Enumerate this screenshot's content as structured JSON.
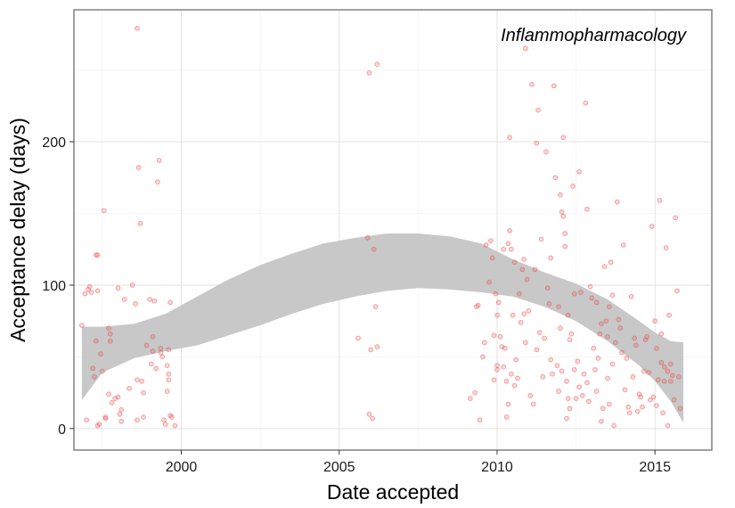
{
  "chart_data": {
    "type": "scatter",
    "title": "Inflammopharmacology",
    "xlabel": "Date accepted",
    "ylabel": "Acceptance delay (days)",
    "xlim": [
      1996.6,
      2016.8
    ],
    "ylim": [
      -15,
      292
    ],
    "xticks": [
      2000,
      2005,
      2010,
      2015
    ],
    "yticks": [
      0,
      100,
      200
    ],
    "grid": true,
    "point_color": "#e8474a",
    "ribbon_color": "#c8c8c8",
    "points": [
      [
        1996.85,
        72
      ],
      [
        1996.95,
        94
      ],
      [
        1997.05,
        97
      ],
      [
        1997.1,
        99
      ],
      [
        1997.15,
        95
      ],
      [
        1997.0,
        6
      ],
      [
        1997.2,
        42
      ],
      [
        1997.25,
        36
      ],
      [
        1997.3,
        121
      ],
      [
        1997.35,
        121
      ],
      [
        1997.3,
        61
      ],
      [
        1997.35,
        96
      ],
      [
        1997.35,
        2
      ],
      [
        1997.4,
        3
      ],
      [
        1997.45,
        52
      ],
      [
        1997.5,
        40
      ],
      [
        1997.55,
        152
      ],
      [
        1997.6,
        7
      ],
      [
        1997.6,
        8
      ],
      [
        1997.7,
        24
      ],
      [
        1997.75,
        66
      ],
      [
        1997.7,
        70
      ],
      [
        1997.75,
        61
      ],
      [
        1997.8,
        18
      ],
      [
        1997.9,
        21
      ],
      [
        1998.0,
        22
      ],
      [
        1998.0,
        98
      ],
      [
        1998.05,
        10
      ],
      [
        1998.1,
        13
      ],
      [
        1998.1,
        5
      ],
      [
        1998.2,
        90
      ],
      [
        1998.35,
        28
      ],
      [
        1998.45,
        100
      ],
      [
        1998.55,
        87
      ],
      [
        1998.6,
        6
      ],
      [
        1998.6,
        34
      ],
      [
        1998.65,
        182
      ],
      [
        1998.6,
        279
      ],
      [
        1998.7,
        143
      ],
      [
        1998.75,
        33
      ],
      [
        1998.8,
        25
      ],
      [
        1998.8,
        8
      ],
      [
        1998.9,
        58
      ],
      [
        1999.0,
        90
      ],
      [
        1999.05,
        45
      ],
      [
        1999.1,
        64
      ],
      [
        1999.1,
        54
      ],
      [
        1999.15,
        89
      ],
      [
        1999.2,
        42
      ],
      [
        1999.25,
        172
      ],
      [
        1999.3,
        187
      ],
      [
        1999.35,
        56
      ],
      [
        1999.35,
        53
      ],
      [
        1999.4,
        50
      ],
      [
        1999.45,
        6
      ],
      [
        1999.5,
        3
      ],
      [
        1999.55,
        26
      ],
      [
        1999.55,
        44
      ],
      [
        1999.6,
        34
      ],
      [
        1999.6,
        38
      ],
      [
        1999.6,
        55
      ],
      [
        1999.65,
        88
      ],
      [
        1999.65,
        9
      ],
      [
        1999.7,
        8
      ],
      [
        1999.8,
        2
      ],
      [
        2005.6,
        63
      ],
      [
        2005.9,
        133
      ],
      [
        2005.95,
        248
      ],
      [
        2005.95,
        10
      ],
      [
        2006.0,
        55
      ],
      [
        2006.05,
        7
      ],
      [
        2006.1,
        125
      ],
      [
        2006.15,
        85
      ],
      [
        2006.2,
        254
      ],
      [
        2006.2,
        57
      ],
      [
        2009.15,
        21
      ],
      [
        2009.3,
        25
      ],
      [
        2009.35,
        85
      ],
      [
        2009.4,
        86
      ],
      [
        2009.45,
        6
      ],
      [
        2009.55,
        50
      ],
      [
        2009.6,
        60
      ],
      [
        2009.65,
        128
      ],
      [
        2009.75,
        102
      ],
      [
        2009.8,
        131
      ],
      [
        2009.85,
        119
      ],
      [
        2009.9,
        65
      ],
      [
        2009.9,
        34
      ],
      [
        2009.95,
        94
      ],
      [
        2010.0,
        79
      ],
      [
        2010.0,
        41
      ],
      [
        2010.0,
        44
      ],
      [
        2010.05,
        88
      ],
      [
        2010.1,
        64
      ],
      [
        2010.15,
        57
      ],
      [
        2010.2,
        43
      ],
      [
        2010.2,
        125
      ],
      [
        2010.25,
        56
      ],
      [
        2010.3,
        8
      ],
      [
        2010.3,
        33
      ],
      [
        2010.35,
        17
      ],
      [
        2010.35,
        129
      ],
      [
        2010.4,
        203
      ],
      [
        2010.4,
        138
      ],
      [
        2010.45,
        125
      ],
      [
        2010.45,
        38
      ],
      [
        2010.5,
        79
      ],
      [
        2010.55,
        116
      ],
      [
        2010.55,
        30
      ],
      [
        2010.6,
        48
      ],
      [
        2010.65,
        35
      ],
      [
        2010.7,
        94
      ],
      [
        2010.75,
        74
      ],
      [
        2010.8,
        111
      ],
      [
        2010.85,
        80
      ],
      [
        2010.85,
        118
      ],
      [
        2010.9,
        265
      ],
      [
        2010.9,
        60
      ],
      [
        2010.95,
        104
      ],
      [
        2011.0,
        82
      ],
      [
        2011.05,
        23
      ],
      [
        2011.1,
        240
      ],
      [
        2011.15,
        17
      ],
      [
        2011.2,
        111
      ],
      [
        2011.25,
        55
      ],
      [
        2011.25,
        199
      ],
      [
        2011.3,
        222
      ],
      [
        2011.35,
        67
      ],
      [
        2011.4,
        132
      ],
      [
        2011.45,
        36
      ],
      [
        2011.5,
        63
      ],
      [
        2011.55,
        193
      ],
      [
        2011.6,
        98
      ],
      [
        2011.65,
        87
      ],
      [
        2011.7,
        119
      ],
      [
        2011.7,
        48
      ],
      [
        2011.75,
        38
      ],
      [
        2011.8,
        239
      ],
      [
        2011.85,
        175
      ],
      [
        2011.9,
        44
      ],
      [
        2011.95,
        26
      ],
      [
        2011.95,
        85
      ],
      [
        2012.0,
        70
      ],
      [
        2012.0,
        163
      ],
      [
        2012.05,
        151
      ],
      [
        2012.05,
        40
      ],
      [
        2012.1,
        203
      ],
      [
        2012.1,
        148
      ],
      [
        2012.15,
        127
      ],
      [
        2012.15,
        136
      ],
      [
        2012.2,
        33
      ],
      [
        2012.2,
        7
      ],
      [
        2012.25,
        79
      ],
      [
        2012.25,
        21
      ],
      [
        2012.3,
        62
      ],
      [
        2012.3,
        14
      ],
      [
        2012.35,
        66
      ],
      [
        2012.4,
        169
      ],
      [
        2012.45,
        41
      ],
      [
        2012.45,
        94
      ],
      [
        2012.5,
        21
      ],
      [
        2012.55,
        47
      ],
      [
        2012.6,
        179
      ],
      [
        2012.6,
        29
      ],
      [
        2012.65,
        95
      ],
      [
        2012.7,
        23
      ],
      [
        2012.75,
        38
      ],
      [
        2012.8,
        227
      ],
      [
        2012.85,
        32
      ],
      [
        2012.85,
        153
      ],
      [
        2012.9,
        19
      ],
      [
        2012.95,
        99
      ],
      [
        2013.0,
        91
      ],
      [
        2013.05,
        56
      ],
      [
        2013.1,
        41
      ],
      [
        2013.15,
        88
      ],
      [
        2013.15,
        26
      ],
      [
        2013.2,
        49
      ],
      [
        2013.25,
        66
      ],
      [
        2013.3,
        5
      ],
      [
        2013.3,
        73
      ],
      [
        2013.35,
        14
      ],
      [
        2013.4,
        113
      ],
      [
        2013.45,
        75
      ],
      [
        2013.5,
        35
      ],
      [
        2013.5,
        64
      ],
      [
        2013.55,
        85
      ],
      [
        2013.55,
        17
      ],
      [
        2013.6,
        116
      ],
      [
        2013.65,
        93
      ],
      [
        2013.65,
        45
      ],
      [
        2013.7,
        2
      ],
      [
        2013.75,
        60
      ],
      [
        2013.8,
        158
      ],
      [
        2013.85,
        76
      ],
      [
        2013.9,
        70
      ],
      [
        2013.95,
        53
      ],
      [
        2014.0,
        128
      ],
      [
        2014.05,
        27
      ],
      [
        2014.1,
        49
      ],
      [
        2014.15,
        15
      ],
      [
        2014.2,
        11
      ],
      [
        2014.25,
        92
      ],
      [
        2014.3,
        36
      ],
      [
        2014.35,
        63
      ],
      [
        2014.4,
        58
      ],
      [
        2014.45,
        12
      ],
      [
        2014.5,
        24
      ],
      [
        2014.55,
        22
      ],
      [
        2014.6,
        15
      ],
      [
        2014.65,
        40
      ],
      [
        2014.7,
        62
      ],
      [
        2014.75,
        64
      ],
      [
        2014.8,
        39
      ],
      [
        2014.85,
        20
      ],
      [
        2014.9,
        141
      ],
      [
        2014.95,
        22
      ],
      [
        2015.0,
        75
      ],
      [
        2015.05,
        56
      ],
      [
        2015.05,
        16
      ],
      [
        2015.1,
        34
      ],
      [
        2015.15,
        159
      ],
      [
        2015.2,
        46
      ],
      [
        2015.25,
        11
      ],
      [
        2015.3,
        43
      ],
      [
        2015.3,
        33
      ],
      [
        2015.35,
        126
      ],
      [
        2015.4,
        2
      ],
      [
        2015.45,
        79
      ],
      [
        2015.5,
        33
      ],
      [
        2015.55,
        37
      ],
      [
        2015.6,
        20
      ],
      [
        2015.65,
        147
      ],
      [
        2015.7,
        96
      ],
      [
        2015.75,
        36
      ],
      [
        2015.8,
        14
      ],
      [
        2015.2,
        66
      ],
      [
        2015.4,
        40
      ],
      [
        2015.5,
        45
      ]
    ],
    "ribbon": {
      "x": [
        1996.85,
        1997.5,
        1998.5,
        1999.5,
        2000.5,
        2001.5,
        2002.5,
        2003.5,
        2004.5,
        2005.5,
        2006.5,
        2007.5,
        2008.5,
        2009.5,
        2010.5,
        2011.5,
        2012.5,
        2013.5,
        2014.5,
        2015.0,
        2015.5,
        2015.9
      ],
      "upper": [
        71,
        71,
        73,
        80,
        92,
        104,
        114,
        122,
        129,
        133,
        136,
        136,
        134,
        129,
        118,
        109,
        101,
        90,
        75,
        67,
        61,
        60
      ],
      "lower": [
        20,
        39,
        49,
        54,
        58,
        65,
        72,
        80,
        87,
        92,
        96,
        98,
        97,
        95,
        92,
        85,
        75,
        61,
        44,
        33,
        19,
        4
      ]
    }
  }
}
